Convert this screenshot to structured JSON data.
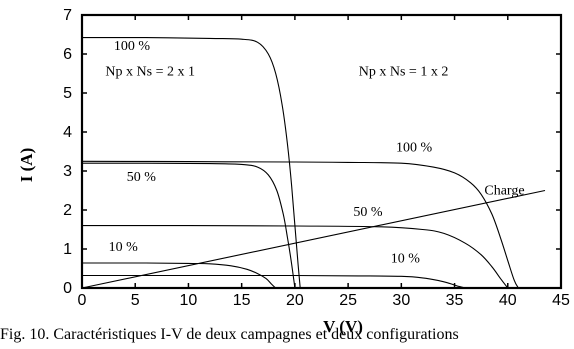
{
  "chart_data": {
    "type": "line",
    "title": "",
    "xlabel": "V (V)",
    "ylabel": "I (A)",
    "xlim": [
      0,
      45
    ],
    "ylim": [
      0,
      7
    ],
    "xticks": [
      0,
      5,
      10,
      15,
      20,
      25,
      30,
      35,
      40,
      45
    ],
    "yticks": [
      0,
      1,
      2,
      3,
      4,
      5,
      6,
      7
    ],
    "grid": false,
    "legend": "none",
    "series": [
      {
        "group": "2x1",
        "level": "100 %",
        "x": [
          0,
          6,
          12,
          15,
          16.5,
          17.5,
          18.2,
          18.8,
          19.3,
          19.7,
          20.0,
          20.3,
          20.5
        ],
        "y": [
          6.42,
          6.42,
          6.4,
          6.38,
          6.3,
          6.0,
          5.5,
          4.7,
          3.7,
          2.6,
          1.6,
          0.6,
          0.0
        ]
      },
      {
        "group": "2x1",
        "level": "50 %",
        "x": [
          0,
          6,
          12,
          15,
          16.5,
          17.5,
          18.3,
          18.9,
          19.3,
          19.7,
          20.0
        ],
        "y": [
          3.2,
          3.2,
          3.19,
          3.17,
          3.1,
          2.9,
          2.5,
          1.9,
          1.3,
          0.6,
          0.0
        ]
      },
      {
        "group": "2x1",
        "level": "10 %",
        "x": [
          0,
          6,
          10,
          12,
          14,
          15.5,
          16.5,
          17.3,
          17.8,
          18.2
        ],
        "y": [
          0.64,
          0.64,
          0.63,
          0.62,
          0.57,
          0.48,
          0.37,
          0.24,
          0.1,
          0.0
        ]
      },
      {
        "group": "1x2",
        "level": "100 %",
        "x": [
          0,
          10,
          20,
          25,
          30,
          33,
          35,
          36.5,
          37.5,
          38.5,
          39.3,
          40.0,
          40.6,
          41.0
        ],
        "y": [
          3.25,
          3.24,
          3.23,
          3.22,
          3.2,
          3.1,
          2.95,
          2.7,
          2.4,
          1.9,
          1.3,
          0.7,
          0.2,
          0.0
        ]
      },
      {
        "group": "1x2",
        "level": "50 %",
        "x": [
          0,
          10,
          20,
          28,
          32,
          34,
          36,
          37.5,
          38.5,
          39.3,
          40.0
        ],
        "y": [
          1.6,
          1.6,
          1.59,
          1.57,
          1.5,
          1.4,
          1.15,
          0.85,
          0.55,
          0.25,
          0.0
        ]
      },
      {
        "group": "1x2",
        "level": "10 %",
        "x": [
          0,
          10,
          20,
          26,
          30,
          32,
          33.5,
          34.5,
          35.3,
          36.0
        ],
        "y": [
          0.32,
          0.32,
          0.32,
          0.31,
          0.3,
          0.26,
          0.19,
          0.12,
          0.05,
          0.0
        ]
      },
      {
        "group": "load",
        "level": "Charge",
        "x": [
          0,
          43.5
        ],
        "y": [
          0,
          2.5
        ]
      }
    ],
    "annotations": [
      {
        "text": "100 %",
        "x": 3,
        "y": 6.1
      },
      {
        "text": "Np x Ns = 2 x 1",
        "x": 2.2,
        "y": 5.45
      },
      {
        "text": "Np x Ns = 1 x 2",
        "x": 26,
        "y": 5.45
      },
      {
        "text": "100 %",
        "x": 29.5,
        "y": 3.5
      },
      {
        "text": "50 %",
        "x": 4.2,
        "y": 2.75
      },
      {
        "text": "Charge",
        "x": 37.8,
        "y": 2.4
      },
      {
        "text": "50 %",
        "x": 25.5,
        "y": 1.85
      },
      {
        "text": "10 %",
        "x": 2.5,
        "y": 0.95
      },
      {
        "text": "10 %",
        "x": 29,
        "y": 0.65
      }
    ]
  },
  "caption": "Fig. 10. Caractéristiques I-V de deux campagnes et deux configurations"
}
